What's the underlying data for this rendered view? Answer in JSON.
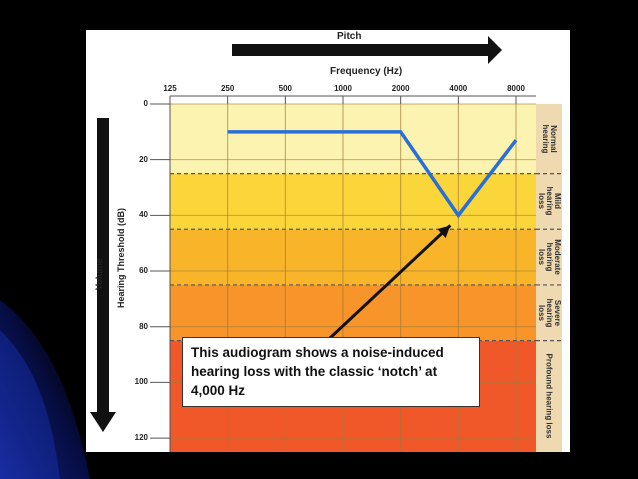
{
  "chart_data": {
    "type": "line",
    "title": "",
    "top_arrow_label": "Pitch",
    "xlabel": "Frequency (Hz)",
    "ylabel": "Hearing Threshold (dB)",
    "left_arrow_label": "Volume",
    "x_ticks": [
      "125",
      "250",
      "500",
      "1000",
      "2000",
      "4000",
      "8000"
    ],
    "y_ticks": [
      "0",
      "20",
      "40",
      "60",
      "80",
      "100",
      "120"
    ],
    "ylim": [
      0,
      120
    ],
    "y_inverted": true,
    "series": [
      {
        "x": [
          "250",
          "500",
          "1000",
          "2000",
          "4000",
          "8000"
        ],
        "y": [
          10,
          10,
          10,
          10,
          40,
          13
        ],
        "color": "#2a6fd6"
      }
    ],
    "bands": [
      {
        "label": "Normal\nhearing",
        "from": 0,
        "to": 25,
        "color": "#fdf3b0"
      },
      {
        "label": "Mild\nhearing\nloss",
        "from": 25,
        "to": 45,
        "color": "#fbd63a"
      },
      {
        "label": "Moderate\nhearing\nloss",
        "from": 45,
        "to": 65,
        "color": "#f9b52a"
      },
      {
        "label": "Severe\nhearing\nloss",
        "from": 65,
        "to": 85,
        "color": "#f7942a"
      },
      {
        "label": "Profound hearing loss",
        "from": 85,
        "to": 125,
        "color": "#f0582a"
      }
    ],
    "annotation": {
      "text": "This audiogram shows a noise-induced hearing loss with the classic ‘notch’ at 4,000 Hz",
      "points_to": {
        "x": "4000",
        "y": 40
      }
    }
  }
}
